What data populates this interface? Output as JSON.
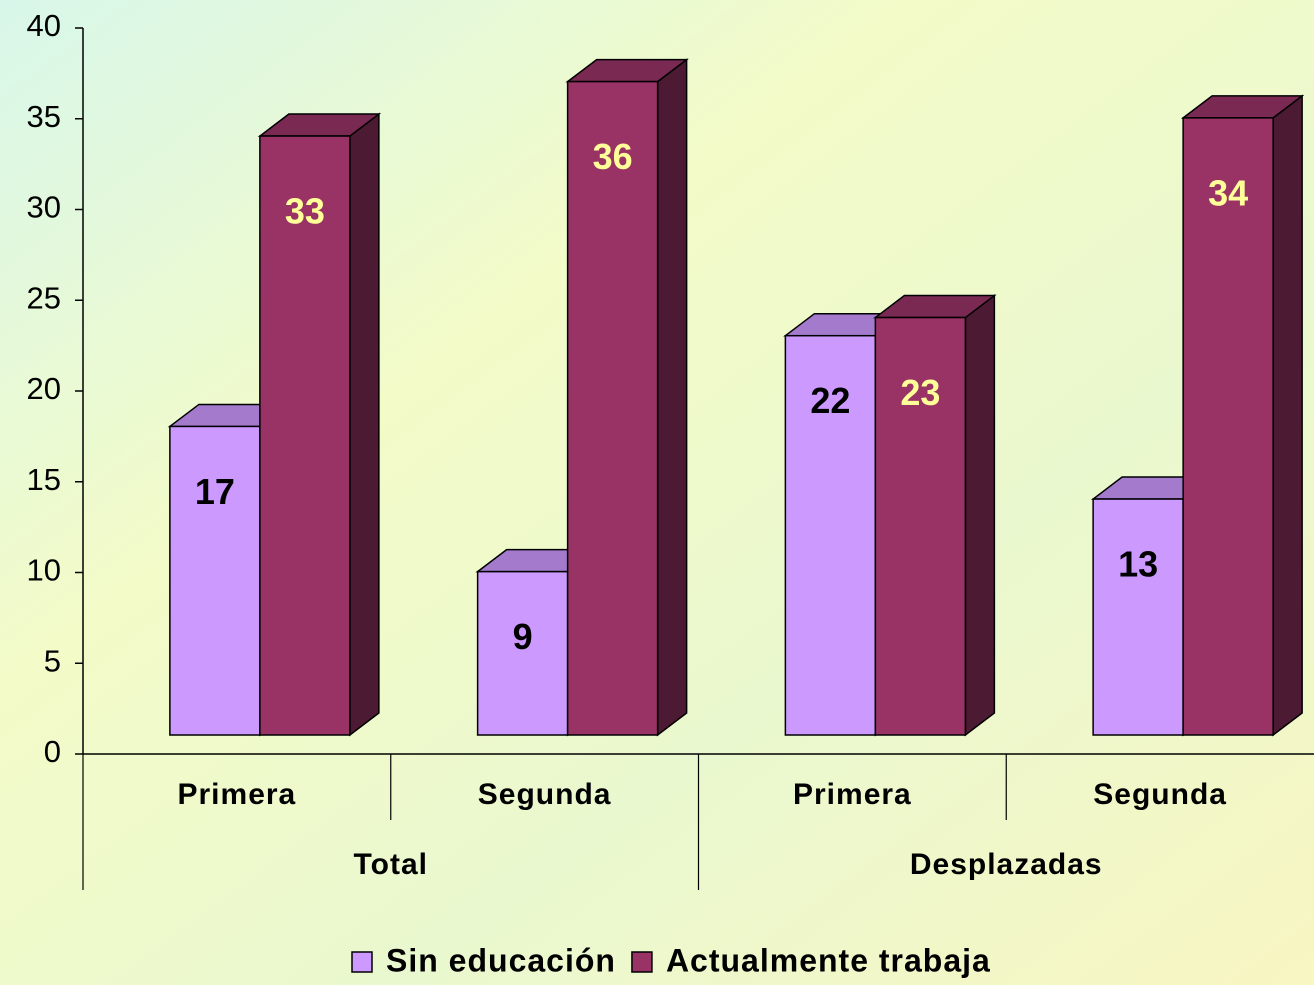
{
  "chart_data": {
    "type": "bar",
    "categories": [
      "Primera",
      "Segunda",
      "Primera",
      "Segunda"
    ],
    "groups": [
      "Total",
      "Desplazadas"
    ],
    "series": [
      {
        "name": "Sin educación",
        "color": "#cc99ff",
        "values": [
          17,
          9,
          22,
          13
        ]
      },
      {
        "name": "Actualmente trabaja",
        "color": "#993366",
        "values": [
          33,
          36,
          23,
          34
        ]
      }
    ],
    "ylim": [
      0,
      40
    ],
    "yticks": [
      0,
      5,
      10,
      15,
      20,
      25,
      30,
      35,
      40
    ]
  }
}
